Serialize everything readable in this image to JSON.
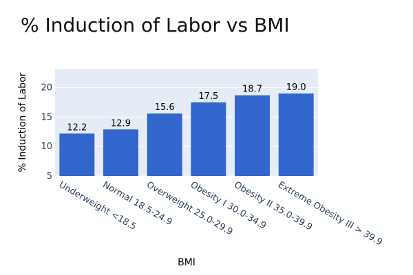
{
  "chart_data": {
    "type": "bar",
    "title": "% Induction of Labor vs BMI",
    "xlabel": "BMI",
    "ylabel": "% Induction of Labor",
    "categories": [
      "Underweight <18.5",
      "Normal 18.5-24.9",
      "Overweight 25.0-29.9",
      "Obesity I 30.0-34.9",
      "Obesity II 35.0-39.9",
      "Extreme Obesity III > 39.9"
    ],
    "values": [
      12.2,
      12.9,
      15.6,
      17.5,
      18.7,
      19.0
    ],
    "value_labels": [
      "12.2",
      "12.9",
      "15.6",
      "17.5",
      "18.7",
      "19.0"
    ],
    "ylim": [
      5,
      23.2
    ],
    "yticks": [
      5,
      10,
      15,
      20
    ],
    "ytick_labels": [
      "5",
      "10",
      "15",
      "20"
    ],
    "grid": true,
    "colors": {
      "bar": "#3366cc",
      "plot_bg": "#e5ecf6",
      "grid": "#ffffff"
    }
  }
}
